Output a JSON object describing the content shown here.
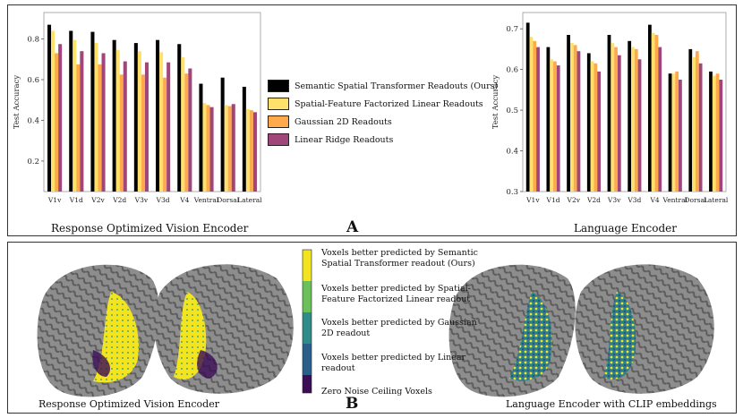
{
  "panel_a": {
    "letter": "A",
    "left_caption": "Response Optimized Vision Encoder",
    "right_caption": "Language Encoder"
  },
  "panel_b": {
    "letter": "B",
    "left_caption": "Response Optimized Vision Encoder",
    "right_caption": "Language Encoder with CLIP embeddings",
    "colorbar_labels": [
      "Voxels better predicted by Semantic Spatial Transformer readout (Ours)",
      "Voxels better predicted by Spatial-Feature Factorized Linear readout",
      "Voxels better predicted by Gaussian 2D readout",
      "Voxels better predicted by Linear readout",
      "Zero Noise Ceiling Voxels"
    ],
    "colors": [
      "#f2e41f",
      "#2e8c8a",
      "#2a5f8c",
      "#3e3d8a",
      "#3b0d55"
    ]
  },
  "legend": [
    {
      "label": "Semantic Spatial Transformer Readouts (Ours)",
      "color": "#000000"
    },
    {
      "label": "Spatial-Feature Factorized Linear Readouts",
      "color": "#ffe06b"
    },
    {
      "label": "Gaussian 2D Readouts",
      "color": "#ffa94d"
    },
    {
      "label": "Linear Ridge Readouts",
      "color": "#a1467a"
    }
  ],
  "chart_data": [
    {
      "type": "bar",
      "title": "",
      "xlabel": "",
      "ylabel": "Test Accuracy",
      "ylim": [
        0.05,
        0.93
      ],
      "yticks": [
        0.2,
        0.4,
        0.6,
        0.8
      ],
      "categories": [
        "V1v",
        "V1d",
        "V2v",
        "V2d",
        "V3v",
        "V3d",
        "V4",
        "Ventral",
        "Dorsal",
        "Lateral"
      ],
      "series": [
        {
          "name": "Semantic Spatial Transformer Readouts (Ours)",
          "values": [
            0.87,
            0.84,
            0.835,
            0.795,
            0.78,
            0.795,
            0.775,
            0.58,
            0.61,
            0.565
          ]
        },
        {
          "name": "Spatial-Feature Factorized Linear Readouts",
          "values": [
            0.84,
            0.795,
            0.78,
            0.745,
            0.74,
            0.735,
            0.71,
            0.485,
            0.475,
            0.455
          ]
        },
        {
          "name": "Gaussian 2D Readouts",
          "values": [
            0.73,
            0.675,
            0.675,
            0.625,
            0.625,
            0.61,
            0.63,
            0.475,
            0.47,
            0.45
          ]
        },
        {
          "name": "Linear Ridge Readouts",
          "values": [
            0.775,
            0.74,
            0.73,
            0.69,
            0.685,
            0.685,
            0.655,
            0.465,
            0.48,
            0.44
          ]
        }
      ]
    },
    {
      "type": "bar",
      "title": "",
      "xlabel": "",
      "ylabel": "Test Accuracy",
      "ylim": [
        0.3,
        0.74
      ],
      "yticks": [
        0.3,
        0.4,
        0.5,
        0.6,
        0.7
      ],
      "categories": [
        "V1v",
        "V1d",
        "V2v",
        "V2d",
        "V3v",
        "V3d",
        "V4",
        "Ventral",
        "Dorsal",
        "Lateral"
      ],
      "series": [
        {
          "name": "Semantic Spatial Transformer Readouts (Ours)",
          "values": [
            0.715,
            0.655,
            0.685,
            0.64,
            0.685,
            0.67,
            0.71,
            0.59,
            0.65,
            0.595
          ]
        },
        {
          "name": "Spatial-Feature Factorized Linear Readouts",
          "values": [
            0.68,
            0.625,
            0.665,
            0.62,
            0.665,
            0.655,
            0.69,
            0.59,
            0.63,
            0.585
          ]
        },
        {
          "name": "Gaussian 2D Readouts",
          "values": [
            0.67,
            0.62,
            0.66,
            0.615,
            0.655,
            0.65,
            0.685,
            0.595,
            0.645,
            0.59
          ]
        },
        {
          "name": "Linear Ridge Readouts",
          "values": [
            0.655,
            0.61,
            0.645,
            0.595,
            0.635,
            0.625,
            0.655,
            0.575,
            0.615,
            0.575
          ]
        }
      ]
    }
  ]
}
